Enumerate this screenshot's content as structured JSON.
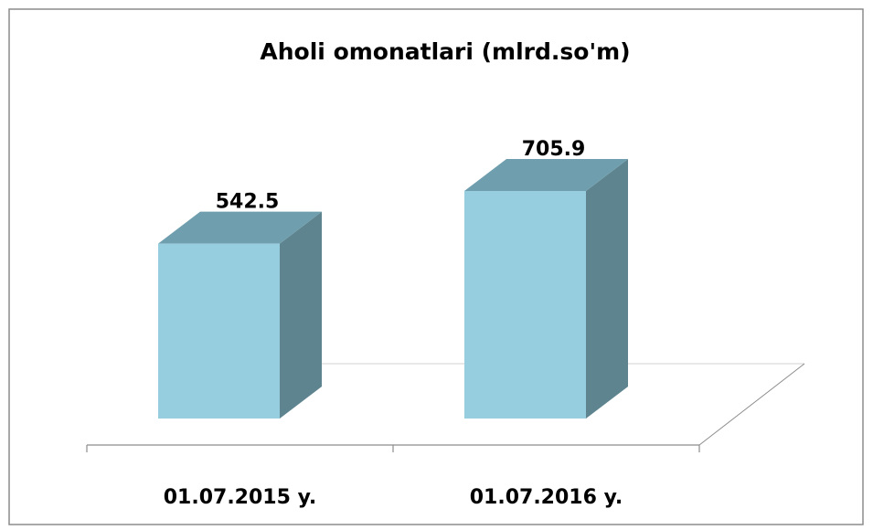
{
  "chart_data": {
    "type": "bar3d",
    "title": "Aholi omonatlari (mlrd.so'm)",
    "categories": [
      "01.07.2015 y.",
      "01.07.2016 y."
    ],
    "values": [
      542.5,
      705.9
    ],
    "value_labels": [
      "542.5",
      "705.9"
    ],
    "color": "#96cddf"
  }
}
